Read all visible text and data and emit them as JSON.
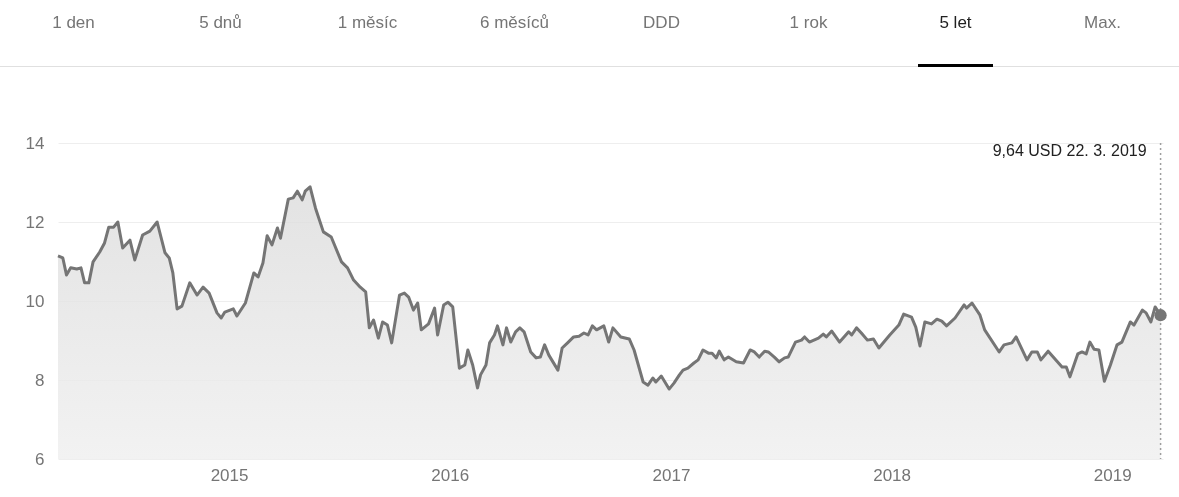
{
  "chart_data": {
    "type": "area",
    "annotations": [
      "1 den",
      "5 dnů",
      "1 měsíc",
      "6 měsíců",
      "DDD",
      "1 rok",
      "5 let",
      "Max."
    ],
    "x": [
      "2014-03-24",
      "2014-04-01",
      "2014-04-07",
      "2014-04-14",
      "2014-04-24",
      "2014-05-01",
      "2014-05-07",
      "2014-05-14",
      "2014-05-21",
      "2014-06-01",
      "2014-06-09",
      "2014-06-16",
      "2014-06-24",
      "2014-07-01",
      "2014-07-09",
      "2014-07-21",
      "2014-07-29",
      "2014-08-11",
      "2014-08-23",
      "2014-09-04",
      "2014-09-17",
      "2014-09-24",
      "2014-09-30",
      "2014-10-07",
      "2014-10-15",
      "2014-10-28",
      "2014-11-09",
      "2014-11-19",
      "2014-11-29",
      "2014-12-12",
      "2014-12-19",
      "2014-12-25",
      "2015-01-08",
      "2015-01-14",
      "2015-01-28",
      "2015-02-11",
      "2015-02-18",
      "2015-02-26",
      "2015-03-05",
      "2015-03-13",
      "2015-03-22",
      "2015-03-27",
      "2015-04-09",
      "2015-04-17",
      "2015-04-24",
      "2015-05-02",
      "2015-05-07",
      "2015-05-15",
      "2015-05-24",
      "2015-06-06",
      "2015-06-19",
      "2015-07-06",
      "2015-07-16",
      "2015-07-26",
      "2015-08-06",
      "2015-08-15",
      "2015-08-21",
      "2015-08-28",
      "2015-09-05",
      "2015-09-12",
      "2015-09-20",
      "2015-09-27",
      "2015-10-10",
      "2015-10-18",
      "2015-10-25",
      "2015-11-02",
      "2015-11-09",
      "2015-11-15",
      "2015-11-27",
      "2015-12-07",
      "2015-12-12",
      "2015-12-22",
      "2015-12-29",
      "2016-01-06",
      "2016-01-17",
      "2016-01-26",
      "2016-01-31",
      "2016-02-08",
      "2016-02-16",
      "2016-02-21",
      "2016-03-01",
      "2016-03-07",
      "2016-03-15",
      "2016-03-20",
      "2016-03-29",
      "2016-04-04",
      "2016-04-11",
      "2016-04-19",
      "2016-04-26",
      "2016-05-03",
      "2016-05-14",
      "2016-05-23",
      "2016-05-30",
      "2016-06-06",
      "2016-06-13",
      "2016-06-28",
      "2016-07-05",
      "2016-07-14",
      "2016-07-24",
      "2016-08-02",
      "2016-08-10",
      "2016-08-17",
      "2016-08-24",
      "2016-08-31",
      "2016-09-12",
      "2016-09-20",
      "2016-09-27",
      "2016-10-10",
      "2016-10-24",
      "2016-11-01",
      "2016-11-16",
      "2016-11-24",
      "2016-12-02",
      "2016-12-07",
      "2016-12-16",
      "2016-12-29",
      "2017-01-06",
      "2017-01-15",
      "2017-01-21",
      "2017-01-29",
      "2017-02-08",
      "2017-02-15",
      "2017-02-23",
      "2017-03-04",
      "2017-03-10",
      "2017-03-17",
      "2017-03-22",
      "2017-03-30",
      "2017-04-06",
      "2017-04-19",
      "2017-05-01",
      "2017-05-12",
      "2017-05-19",
      "2017-05-27",
      "2017-06-05",
      "2017-06-11",
      "2017-06-21",
      "2017-06-29",
      "2017-07-08",
      "2017-07-14",
      "2017-07-26",
      "2017-08-05",
      "2017-08-10",
      "2017-08-18",
      "2017-09-02",
      "2017-09-10",
      "2017-09-15",
      "2017-09-24",
      "2017-10-07",
      "2017-10-22",
      "2017-10-27",
      "2017-11-04",
      "2017-11-12",
      "2017-11-22",
      "2017-12-02",
      "2017-12-11",
      "2017-12-29",
      "2018-01-13",
      "2018-01-21",
      "2018-02-03",
      "2018-02-10",
      "2018-02-17",
      "2018-02-25",
      "2018-03-08",
      "2018-03-17",
      "2018-03-25",
      "2018-04-02",
      "2018-04-16",
      "2018-05-01",
      "2018-05-05",
      "2018-05-14",
      "2018-05-27",
      "2018-06-04",
      "2018-06-28",
      "2018-07-06",
      "2018-07-19",
      "2018-07-26",
      "2018-08-13",
      "2018-08-21",
      "2018-08-30",
      "2018-09-05",
      "2018-09-17",
      "2018-10-10",
      "2018-10-17",
      "2018-10-23",
      "2018-11-05",
      "2018-11-12",
      "2018-11-19",
      "2018-11-25",
      "2018-12-02",
      "2018-12-10",
      "2018-12-19",
      "2018-12-29",
      "2019-01-09",
      "2019-01-17",
      "2019-01-31",
      "2019-02-06",
      "2019-02-20",
      "2019-02-26",
      "2019-03-06",
      "2019-03-13",
      "2019-03-22"
    ],
    "series": [
      {
        "color": "#757575",
        "values": [
          11.14,
          11.09,
          10.66,
          10.84,
          10.81,
          10.84,
          10.46,
          10.46,
          10.99,
          11.24,
          11.47,
          11.87,
          11.87,
          12.0,
          11.34,
          11.54,
          11.04,
          11.67,
          11.77,
          12.0,
          11.22,
          11.09,
          10.71,
          9.8,
          9.87,
          10.46,
          10.15,
          10.35,
          10.2,
          9.7,
          9.57,
          9.72,
          9.8,
          9.62,
          9.95,
          10.71,
          10.61,
          10.96,
          11.65,
          11.42,
          11.85,
          11.59,
          12.58,
          12.61,
          12.78,
          12.56,
          12.78,
          12.89,
          12.35,
          11.75,
          11.62,
          10.99,
          10.84,
          10.53,
          10.35,
          10.23,
          9.32,
          9.52,
          9.06,
          9.47,
          9.39,
          8.94,
          10.15,
          10.2,
          10.1,
          9.77,
          9.95,
          9.27,
          9.42,
          9.82,
          9.14,
          9.9,
          9.97,
          9.85,
          8.3,
          8.38,
          8.76,
          8.38,
          7.8,
          8.13,
          8.38,
          8.94,
          9.14,
          9.37,
          8.89,
          9.32,
          8.96,
          9.22,
          9.32,
          9.22,
          8.71,
          8.56,
          8.58,
          8.89,
          8.63,
          8.25,
          8.81,
          8.94,
          9.09,
          9.11,
          9.19,
          9.14,
          9.37,
          9.27,
          9.37,
          8.96,
          9.32,
          9.09,
          9.04,
          8.76,
          7.95,
          7.87,
          8.05,
          7.95,
          8.1,
          7.77,
          7.92,
          8.13,
          8.25,
          8.3,
          8.43,
          8.51,
          8.76,
          8.68,
          8.68,
          8.56,
          8.73,
          8.51,
          8.58,
          8.46,
          8.43,
          8.76,
          8.71,
          8.58,
          8.73,
          8.71,
          8.58,
          8.46,
          8.56,
          8.58,
          8.96,
          9.01,
          9.09,
          8.96,
          9.06,
          9.16,
          9.09,
          9.24,
          8.96,
          9.22,
          9.14,
          9.32,
          9.19,
          9.01,
          9.04,
          8.81,
          9.14,
          9.39,
          9.67,
          9.59,
          9.34,
          8.86,
          9.47,
          9.42,
          9.54,
          9.49,
          9.37,
          9.57,
          9.9,
          9.82,
          9.95,
          9.65,
          9.27,
          8.71,
          8.89,
          8.94,
          9.09,
          8.51,
          8.71,
          8.71,
          8.51,
          8.73,
          8.33,
          8.33,
          8.08,
          8.66,
          8.71,
          8.66,
          8.96,
          8.78,
          8.76,
          7.97,
          8.38,
          8.89,
          8.96,
          9.47,
          9.39,
          9.77,
          9.7,
          9.47,
          9.85,
          9.64
        ]
      }
    ],
    "xlim": [
      "2014-03-24",
      "2019-03-26"
    ],
    "xticks": [
      {
        "value": "2015-01-01",
        "label": "2015"
      },
      {
        "value": "2016-01-01",
        "label": "2016"
      },
      {
        "value": "2017-01-01",
        "label": "2017"
      },
      {
        "value": "2018-01-01",
        "label": "2018"
      },
      {
        "value": "2019-01-01",
        "label": "2019"
      }
    ],
    "ylim": [
      6,
      14
    ],
    "yticks": [
      6,
      8,
      10,
      12,
      14
    ],
    "grid": "y",
    "ref_lines": [
      {
        "axis": "x",
        "value": "2019-03-22",
        "label": "9,64 USD  22. 3. 2019",
        "color": "#9e9e9e",
        "line_style": "dotted"
      }
    ]
  }
}
